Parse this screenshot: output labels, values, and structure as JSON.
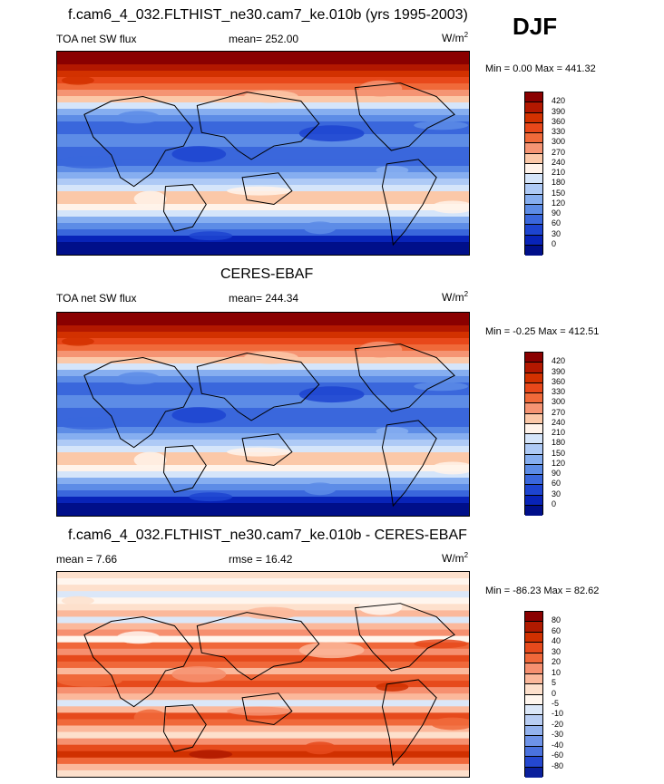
{
  "season": "DJF",
  "panels": [
    {
      "title": "f.cam6_4_032.FLTHIST_ne30.cam7_ke.010b (yrs 1995-2003)",
      "left_label": "TOA net SW flux",
      "center_label": "mean= 252.00",
      "units_base": "W/m",
      "units_sup": "2",
      "minmax": "Min =   0.00 Max = 441.32",
      "palette": "abs",
      "colorbar_labels": [
        "420",
        "390",
        "360",
        "330",
        "300",
        "270",
        "240",
        "210",
        "180",
        "150",
        "120",
        "90",
        "60",
        "30",
        "0"
      ]
    },
    {
      "title": "CERES-EBAF",
      "left_label": "TOA net SW flux",
      "center_label": "mean= 244.34",
      "units_base": "W/m",
      "units_sup": "2",
      "minmax": "Min =  -0.25 Max = 412.51",
      "palette": "abs",
      "colorbar_labels": [
        "420",
        "390",
        "360",
        "330",
        "300",
        "270",
        "240",
        "210",
        "180",
        "150",
        "120",
        "90",
        "60",
        "30",
        "0"
      ]
    },
    {
      "title": "f.cam6_4_032.FLTHIST_ne30.cam7_ke.010b - CERES-EBAF",
      "left_label": "mean =   7.66",
      "center_label": "rmse =  16.42",
      "units_base": "W/m",
      "units_sup": "2",
      "minmax": "Min = -86.23 Max =  82.62",
      "palette": "diff",
      "colorbar_labels": [
        "80",
        "60",
        "40",
        "30",
        "20",
        "10",
        "5",
        "0",
        "-5",
        "-10",
        "-20",
        "-30",
        "-40",
        "-60",
        "-80"
      ]
    }
  ],
  "palettes": {
    "abs": [
      "#8a0000",
      "#b31800",
      "#d23100",
      "#e8481a",
      "#f06a3a",
      "#f59473",
      "#fbc8a8",
      "#fff3ea",
      "#d5e5fa",
      "#aecaf6",
      "#86aef0",
      "#5d8ce6",
      "#3a67dc",
      "#1d44d0",
      "#0823b8",
      "#000f8a"
    ],
    "diff": [
      "#8a0000",
      "#b01a00",
      "#d03000",
      "#e64a1c",
      "#f0683a",
      "#f69070",
      "#fbb89b",
      "#fde0cc",
      "#fff6ee",
      "#dbe7f8",
      "#b8cdf3",
      "#93b2ee",
      "#6e93e8",
      "#4a72de",
      "#2448d0",
      "#0a1f9c"
    ]
  }
}
